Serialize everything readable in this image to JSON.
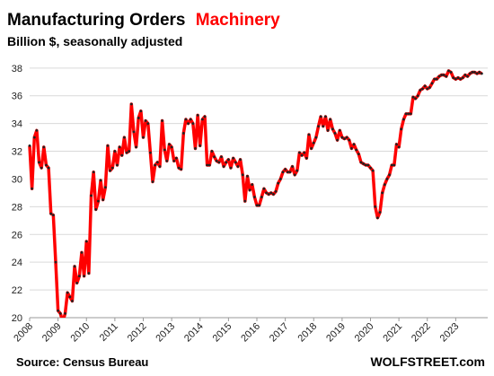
{
  "chart_data": {
    "type": "line",
    "title": "Manufacturing  Orders",
    "title_highlight": "Machinery",
    "subtitle": "Billion $, seasonally adjusted",
    "source": "Source: Census Bureau",
    "brand": "WOLFSTREET.com",
    "x": [
      2008,
      2008.083,
      2008.167,
      2008.25,
      2008.333,
      2008.417,
      2008.5,
      2008.583,
      2008.667,
      2008.75,
      2008.833,
      2008.917,
      2009,
      2009.083,
      2009.167,
      2009.25,
      2009.333,
      2009.417,
      2009.5,
      2009.583,
      2009.667,
      2009.75,
      2009.833,
      2009.917,
      2010,
      2010.083,
      2010.167,
      2010.25,
      2010.333,
      2010.417,
      2010.5,
      2010.583,
      2010.667,
      2010.75,
      2010.833,
      2010.917,
      2011,
      2011.083,
      2011.167,
      2011.25,
      2011.333,
      2011.417,
      2011.5,
      2011.583,
      2011.667,
      2011.75,
      2011.833,
      2011.917,
      2012,
      2012.083,
      2012.167,
      2012.25,
      2012.333,
      2012.417,
      2012.5,
      2012.583,
      2012.667,
      2012.75,
      2012.833,
      2012.917,
      2013,
      2013.083,
      2013.167,
      2013.25,
      2013.333,
      2013.417,
      2013.5,
      2013.583,
      2013.667,
      2013.75,
      2013.833,
      2013.917,
      2014,
      2014.083,
      2014.167,
      2014.25,
      2014.333,
      2014.417,
      2014.5,
      2014.583,
      2014.667,
      2014.75,
      2014.833,
      2014.917,
      2015,
      2015.083,
      2015.167,
      2015.25,
      2015.333,
      2015.417,
      2015.5,
      2015.583,
      2015.667,
      2015.75,
      2015.833,
      2015.917,
      2016,
      2016.083,
      2016.167,
      2016.25,
      2016.333,
      2016.417,
      2016.5,
      2016.583,
      2016.667,
      2016.75,
      2016.833,
      2016.917,
      2017,
      2017.083,
      2017.167,
      2017.25,
      2017.333,
      2017.417,
      2017.5,
      2017.583,
      2017.667,
      2017.75,
      2017.833,
      2017.917,
      2018,
      2018.083,
      2018.167,
      2018.25,
      2018.333,
      2018.417,
      2018.5,
      2018.583,
      2018.667,
      2018.75,
      2018.833,
      2018.917,
      2019,
      2019.083,
      2019.167,
      2019.25,
      2019.333,
      2019.417,
      2019.5,
      2019.583,
      2019.667,
      2019.75,
      2019.833,
      2019.917,
      2020,
      2020.083,
      2020.167,
      2020.25,
      2020.333,
      2020.417,
      2020.5,
      2020.583,
      2020.667,
      2020.75,
      2020.833,
      2020.917,
      2021,
      2021.083,
      2021.167,
      2021.25,
      2021.333,
      2021.417,
      2021.5,
      2021.583,
      2021.667,
      2021.75,
      2021.833,
      2021.917,
      2022,
      2022.083,
      2022.167,
      2022.25,
      2022.333,
      2022.417,
      2022.5,
      2022.583,
      2022.667,
      2022.75,
      2022.833,
      2022.917,
      2023,
      2023.083,
      2023.167,
      2023.25,
      2023.333,
      2023.417,
      2023.5,
      2023.583,
      2023.667,
      2023.75,
      2023.833,
      2023.917
    ],
    "series": [
      {
        "name": "Machinery",
        "color": "#ff0000",
        "marker_color": "#222222",
        "values": [
          32.4,
          29.3,
          33.0,
          33.5,
          31.2,
          30.8,
          32.3,
          31.0,
          30.8,
          27.5,
          27.4,
          24.0,
          20.5,
          20.3,
          19.7,
          20.3,
          21.8,
          21.5,
          21.2,
          23.7,
          22.5,
          23.0,
          24.7,
          23.0,
          25.5,
          23.2,
          28.8,
          30.5,
          27.8,
          28.4,
          29.9,
          28.5,
          29.4,
          32.4,
          30.6,
          30.8,
          32.0,
          31.0,
          32.3,
          31.7,
          33.0,
          31.9,
          32.0,
          35.4,
          33.4,
          32.3,
          34.4,
          34.9,
          33.0,
          34.2,
          34.0,
          31.9,
          29.8,
          31.0,
          31.2,
          30.9,
          34.2,
          32.1,
          31.3,
          32.5,
          32.3,
          31.3,
          31.5,
          30.8,
          30.7,
          33.3,
          34.3,
          34.0,
          34.3,
          34.0,
          32.2,
          34.6,
          32.4,
          34.3,
          34.5,
          31.0,
          31.0,
          32.0,
          31.6,
          31.3,
          31.2,
          31.6,
          30.9,
          31.2,
          31.4,
          30.8,
          31.5,
          31.2,
          30.9,
          31.4,
          30.3,
          28.4,
          30.2,
          29.2,
          29.6,
          28.7,
          28.1,
          28.1,
          28.7,
          29.3,
          29.0,
          28.9,
          29.0,
          28.9,
          29.1,
          29.7,
          30.0,
          30.5,
          30.7,
          30.5,
          30.5,
          30.9,
          30.3,
          30.6,
          31.9,
          31.7,
          31.9,
          31.5,
          33.2,
          32.2,
          32.6,
          33.0,
          33.8,
          34.5,
          33.8,
          34.5,
          33.5,
          34.3,
          33.6,
          33.3,
          32.8,
          33.5,
          33.0,
          32.9,
          33.0,
          32.8,
          32.2,
          32.5,
          32.1,
          31.8,
          31.2,
          31.1,
          31.0,
          31.0,
          30.8,
          30.6,
          28.0,
          27.2,
          27.6,
          29.0,
          29.6,
          30.0,
          30.3,
          31.0,
          31.0,
          32.5,
          32.3,
          33.6,
          34.3,
          34.7,
          34.7,
          34.7,
          35.9,
          35.8,
          36.0,
          36.4,
          36.5,
          36.7,
          36.5,
          36.6,
          36.9,
          37.2,
          37.2,
          37.4,
          37.5,
          37.5,
          37.4,
          37.8,
          37.7,
          37.3,
          37.2,
          37.3,
          37.2,
          37.3,
          37.5,
          37.4,
          37.6,
          37.7,
          37.7,
          37.6,
          37.7,
          37.6
        ]
      }
    ],
    "xlim": [
      2008,
      2024
    ],
    "xticks": [
      2008,
      2009,
      2010,
      2011,
      2012,
      2013,
      2014,
      2015,
      2016,
      2017,
      2018,
      2019,
      2020,
      2021,
      2022,
      2023
    ],
    "ylim": [
      20,
      38.7
    ],
    "yticks": [
      20,
      22,
      24,
      26,
      28,
      30,
      32,
      34,
      36,
      38
    ],
    "grid": true
  }
}
